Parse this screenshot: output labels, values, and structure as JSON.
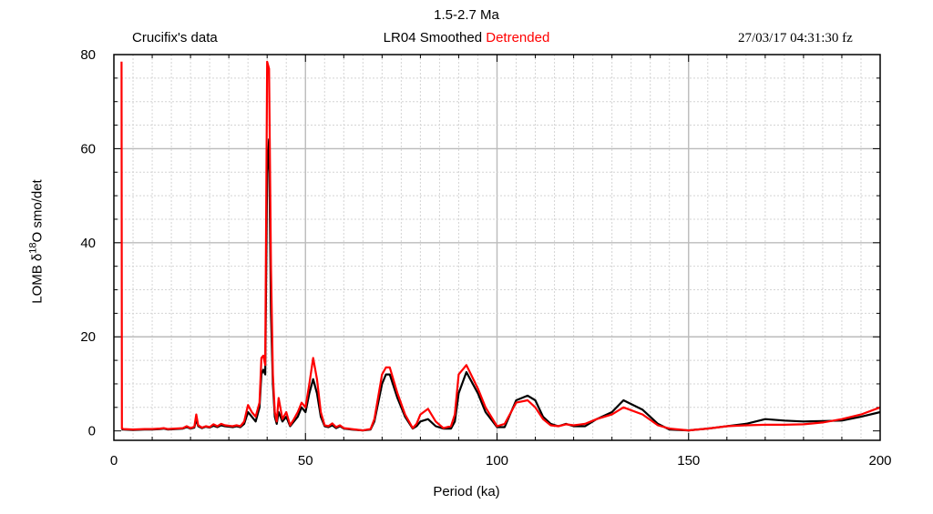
{
  "header": {
    "title": "1.5-2.7 Ma",
    "left_label": "Crucifix's data",
    "center_label_black": "LR04 Smoothed",
    "center_label_red": "Detrended",
    "timestamp": "27/03/17  04:31:30 fz"
  },
  "chart_data": {
    "type": "line",
    "title": "1.5-2.7 Ma",
    "xlabel": "Period (ka)",
    "ylabel": "LOMB δ18O smo/det",
    "xlim": [
      0,
      200
    ],
    "ylim": [
      -2,
      80
    ],
    "xticks": [
      0,
      50,
      100,
      150,
      200
    ],
    "yticks": [
      0,
      20,
      40,
      60,
      80
    ],
    "grid": true,
    "colors": {
      "smoothed": "#000000",
      "detrended": "#ff0000"
    },
    "series": [
      {
        "name": "LR04 Smoothed",
        "color": "#000000",
        "x": [
          2,
          2.1,
          2.5,
          5,
          8,
          10,
          12,
          13,
          14,
          16,
          18,
          19,
          20,
          21,
          21.5,
          22,
          23,
          24,
          25,
          26,
          27,
          28,
          29,
          30,
          31,
          32,
          33,
          34,
          35,
          36,
          37,
          38,
          38.5,
          39,
          39.5,
          40,
          40.5,
          41,
          41.5,
          42,
          42.5,
          43,
          44,
          45,
          46,
          47,
          48,
          49,
          50,
          51,
          52,
          53,
          54,
          55,
          56,
          57,
          58,
          59,
          60,
          62,
          65,
          67,
          68,
          70,
          71,
          72,
          74,
          76,
          78,
          79,
          80,
          82,
          84,
          86,
          88,
          89,
          90,
          92,
          95,
          97,
          100,
          102,
          105,
          108,
          110,
          112,
          114,
          116,
          118,
          120,
          123,
          126,
          130,
          133,
          138,
          142,
          145,
          150,
          155,
          160,
          165,
          170,
          175,
          180,
          185,
          190,
          195,
          200
        ],
        "y": [
          0.3,
          0.3,
          0.3,
          0.2,
          0.3,
          0.3,
          0.4,
          0.5,
          0.3,
          0.4,
          0.5,
          0.8,
          0.5,
          0.7,
          2.5,
          1.0,
          0.6,
          0.9,
          0.7,
          1.1,
          0.8,
          1.2,
          1.0,
          0.9,
          0.8,
          1.0,
          0.8,
          1.5,
          4.0,
          3.0,
          2.0,
          5.0,
          12.0,
          13.0,
          12.0,
          55.0,
          62.0,
          25.0,
          10.0,
          3.0,
          1.5,
          4.0,
          2.0,
          3.0,
          1.0,
          2.0,
          3.0,
          5.0,
          4.0,
          8.0,
          11.0,
          8.0,
          3.0,
          1.0,
          0.8,
          1.2,
          0.6,
          1.0,
          0.5,
          0.3,
          0.1,
          0.3,
          2.0,
          10.0,
          12.0,
          12.0,
          7.0,
          3.0,
          0.5,
          1.0,
          2.0,
          2.5,
          1.0,
          0.5,
          0.5,
          2.0,
          8.0,
          12.5,
          8.0,
          4.0,
          0.8,
          0.8,
          6.5,
          7.5,
          6.5,
          3.0,
          1.5,
          1.0,
          1.5,
          1.0,
          1.0,
          2.5,
          4.0,
          6.5,
          4.5,
          1.5,
          0.3,
          0.1,
          0.5,
          1.0,
          1.5,
          2.5,
          2.2,
          2.0,
          2.1,
          2.2,
          3.0,
          4.0
        ]
      },
      {
        "name": "Detrended",
        "color": "#ff0000",
        "x": [
          2,
          2.1,
          2.5,
          5,
          8,
          10,
          12,
          13,
          14,
          16,
          18,
          19,
          20,
          21,
          21.5,
          22,
          23,
          24,
          25,
          26,
          27,
          28,
          29,
          30,
          31,
          32,
          33,
          34,
          35,
          36,
          37,
          38,
          38.5,
          39,
          39.5,
          40,
          40.5,
          41,
          41.5,
          42,
          42.5,
          43,
          44,
          45,
          46,
          47,
          48,
          49,
          50,
          51,
          52,
          53,
          54,
          55,
          56,
          57,
          58,
          59,
          60,
          62,
          65,
          67,
          68,
          70,
          71,
          72,
          74,
          76,
          78,
          79,
          80,
          82,
          84,
          86,
          88,
          89,
          90,
          92,
          95,
          97,
          100,
          102,
          105,
          108,
          110,
          112,
          114,
          116,
          118,
          120,
          123,
          126,
          130,
          133,
          138,
          142,
          145,
          150,
          155,
          160,
          165,
          170,
          175,
          180,
          185,
          190,
          195,
          200
        ],
        "y": [
          78.5,
          0.5,
          0.4,
          0.3,
          0.4,
          0.4,
          0.5,
          0.6,
          0.4,
          0.5,
          0.6,
          1.0,
          0.6,
          0.9,
          3.5,
          1.2,
          0.7,
          1.0,
          0.8,
          1.4,
          1.0,
          1.5,
          1.2,
          1.1,
          1.0,
          1.2,
          1.0,
          2.0,
          5.5,
          4.0,
          3.0,
          6.0,
          15.5,
          16.0,
          14.0,
          78.5,
          77.0,
          35.0,
          12.0,
          4.0,
          2.0,
          7.0,
          2.5,
          4.0,
          1.2,
          2.5,
          4.0,
          6.0,
          5.0,
          10.0,
          15.5,
          11.0,
          4.0,
          1.2,
          1.0,
          1.6,
          0.8,
          1.2,
          0.6,
          0.4,
          0.1,
          0.4,
          2.5,
          12.0,
          13.5,
          13.5,
          8.0,
          3.5,
          0.6,
          1.5,
          3.5,
          4.7,
          2.0,
          0.6,
          1.0,
          3.5,
          12.0,
          14.0,
          9.0,
          5.0,
          1.0,
          1.5,
          6.0,
          6.5,
          5.0,
          2.5,
          1.2,
          1.0,
          1.4,
          1.2,
          1.5,
          2.5,
          3.5,
          5.0,
          3.5,
          1.2,
          0.5,
          0.1,
          0.5,
          1.0,
          1.2,
          1.3,
          1.3,
          1.4,
          1.8,
          2.5,
          3.5,
          5.0
        ]
      }
    ]
  }
}
